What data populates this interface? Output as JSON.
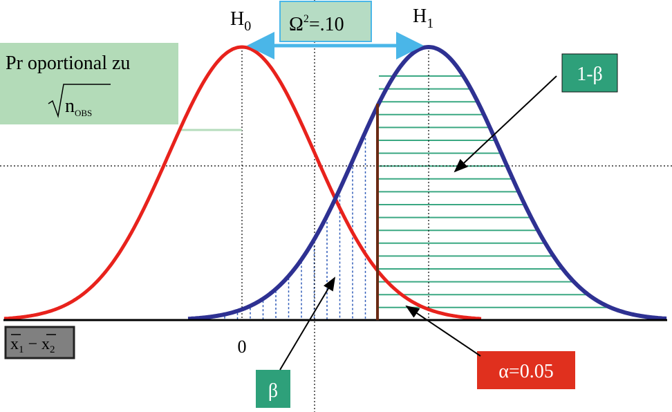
{
  "labels": {
    "h0": {
      "main": "H",
      "sub": "0"
    },
    "h1": {
      "main": "H",
      "sub": "1"
    },
    "effect": {
      "main": "Ω",
      "sup": "2",
      "rest": "=.10"
    },
    "proportional": {
      "line1": "Pr oportional   zu",
      "root": "n",
      "root_sub": "OBS"
    },
    "power": "1-β",
    "beta": "β",
    "alpha": "α=0.05",
    "zero": "0",
    "difference": {
      "x1": "x",
      "sub1": "1",
      "minus": "−",
      "x2": "x",
      "sub2": "2"
    }
  }
}
